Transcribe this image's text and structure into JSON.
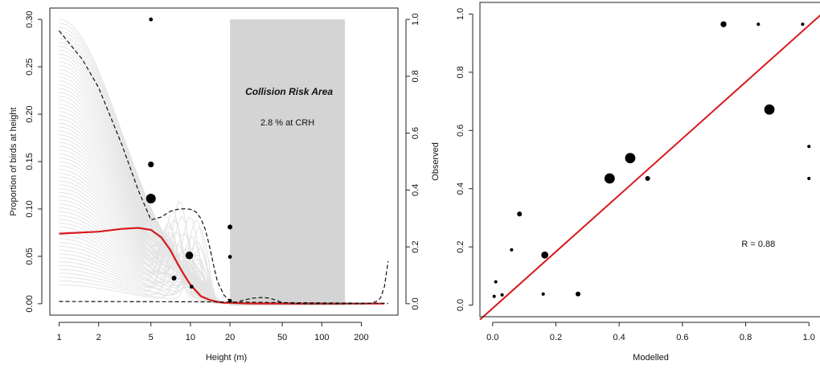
{
  "chart_data": [
    {
      "type": "line",
      "xlabel": "Height (m)",
      "ylabel": "Proportion of birds at height",
      "y2label": "Observed",
      "x_scale": "log",
      "x_ticks": [
        1,
        2,
        5,
        10,
        20,
        50,
        100,
        200
      ],
      "x_tick_labels": [
        "1",
        "2",
        "5",
        "10",
        "20",
        "50",
        "100",
        "200"
      ],
      "xlim": [
        0.85,
        380
      ],
      "ylim": [
        -0.012,
        0.312
      ],
      "y_ticks": [
        0.0,
        0.05,
        0.1,
        0.15,
        0.2,
        0.25,
        0.3
      ],
      "y_tick_labels": [
        "0.00",
        "0.05",
        "0.10",
        "0.15",
        "0.20",
        "0.25",
        "0.30"
      ],
      "y2lim": [
        -0.04,
        1.04
      ],
      "y2_ticks": [
        0.0,
        0.2,
        0.4,
        0.6,
        0.8,
        1.0
      ],
      "y2_tick_labels": [
        "0.0",
        "0.2",
        "0.4",
        "0.6",
        "0.8",
        "1.0"
      ],
      "grid": false,
      "shaded_region": {
        "x": [
          20,
          150
        ],
        "color": "#d4d4d4",
        "title": "Collision Risk Area",
        "text": "2.8 % at CRH"
      },
      "series": [
        {
          "style": "solid",
          "color": "#d7191c",
          "x": [
            1,
            2,
            3,
            4,
            5,
            6,
            7,
            8,
            9,
            10,
            12,
            14,
            16,
            18,
            20,
            25,
            30,
            50,
            100,
            200,
            300
          ],
          "y": [
            0.074,
            0.076,
            0.079,
            0.08,
            0.078,
            0.07,
            0.057,
            0.042,
            0.03,
            0.02,
            0.008,
            0.004,
            0.002,
            0.001,
            0.001,
            0.0005,
            0.0003,
            0.0002,
            0.0001,
            0.0001,
            0.0001
          ]
        },
        {
          "style": "dashed",
          "color": "#111111",
          "axis": "right",
          "x": [
            1,
            1.5,
            2,
            3,
            4,
            5,
            6,
            7,
            8,
            9,
            10,
            11,
            12,
            13,
            14,
            15,
            16,
            18,
            20,
            22,
            25,
            30,
            35,
            40,
            45,
            50,
            60,
            80,
            100,
            150,
            200,
            240,
            260,
            280,
            300,
            320
          ],
          "y": [
            0.96,
            0.86,
            0.76,
            0.56,
            0.4,
            0.295,
            0.305,
            0.325,
            0.332,
            0.334,
            0.332,
            0.323,
            0.3,
            0.26,
            0.2,
            0.135,
            0.08,
            0.03,
            0.01,
            0.005,
            0.012,
            0.02,
            0.022,
            0.02,
            0.012,
            0.004,
            0.001,
            0.0,
            0.0,
            0.0,
            0.0,
            0.002,
            0.008,
            0.02,
            0.06,
            0.15
          ]
        },
        {
          "style": "dashed",
          "color": "#111111",
          "axis": "right",
          "x": [
            1,
            10,
            20,
            50,
            100,
            200,
            320
          ],
          "y": [
            0.008,
            0.007,
            0.006,
            0.004,
            0.003,
            0.002,
            0.001
          ]
        }
      ],
      "points": [
        {
          "x": 5,
          "y": 1.0,
          "size": 1
        },
        {
          "x": 5,
          "y": 0.49,
          "size": 2
        },
        {
          "x": 5,
          "y": 0.37,
          "size": 4
        },
        {
          "x": 7.5,
          "y": 0.09,
          "size": 1.5
        },
        {
          "x": 9.8,
          "y": 0.17,
          "size": 3
        },
        {
          "x": 10.2,
          "y": 0.06,
          "size": 1
        },
        {
          "x": 20,
          "y": 0.27,
          "size": 1.5
        },
        {
          "x": 20,
          "y": 0.165,
          "size": 1
        },
        {
          "x": 20,
          "y": 0.01,
          "size": 1
        }
      ]
    },
    {
      "type": "scatter",
      "xlabel": "Modelled",
      "ylabel": "",
      "xlim": [
        -0.04,
        1.04
      ],
      "ylim": [
        -0.04,
        1.04
      ],
      "x_ticks": [
        0.0,
        0.2,
        0.4,
        0.6,
        0.8,
        1.0
      ],
      "x_tick_labels": [
        "0.0",
        "0.2",
        "0.4",
        "0.6",
        "0.8",
        "1.0"
      ],
      "y_ticks": [
        0.0,
        0.2,
        0.4,
        0.6,
        0.8,
        1.0
      ],
      "y_tick_labels": [
        "0.0",
        "0.2",
        "0.4",
        "0.6",
        "0.8",
        "1.0"
      ],
      "grid": false,
      "annotation": "R = 0.88",
      "fit_line": {
        "color": "#d7191c",
        "x": [
          -0.04,
          1.04
        ],
        "y": [
          -0.05,
          1.0
        ]
      },
      "points": [
        {
          "x": 0.73,
          "y": 0.965,
          "size": 2
        },
        {
          "x": 0.84,
          "y": 0.965,
          "size": 0.8
        },
        {
          "x": 0.98,
          "y": 0.965,
          "size": 0.8
        },
        {
          "x": 0.875,
          "y": 0.672,
          "size": 4
        },
        {
          "x": 0.435,
          "y": 0.505,
          "size": 4
        },
        {
          "x": 0.37,
          "y": 0.435,
          "size": 4
        },
        {
          "x": 0.49,
          "y": 0.435,
          "size": 1.5
        },
        {
          "x": 0.165,
          "y": 0.172,
          "size": 2.5
        },
        {
          "x": 0.085,
          "y": 0.313,
          "size": 1.5
        },
        {
          "x": 0.06,
          "y": 0.19,
          "size": 0.8
        },
        {
          "x": 0.27,
          "y": 0.038,
          "size": 1.5
        },
        {
          "x": 0.16,
          "y": 0.038,
          "size": 0.8
        },
        {
          "x": 0.01,
          "y": 0.08,
          "size": 0.8
        },
        {
          "x": 0.005,
          "y": 0.03,
          "size": 0.8
        },
        {
          "x": 0.03,
          "y": 0.035,
          "size": 0.8
        },
        {
          "x": 1.0,
          "y": 0.545,
          "size": 0.8
        },
        {
          "x": 1.0,
          "y": 0.435,
          "size": 0.8
        }
      ]
    }
  ]
}
